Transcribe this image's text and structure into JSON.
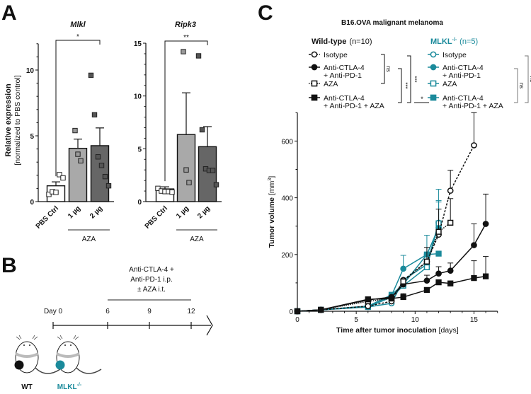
{
  "colors": {
    "wt": "#111111",
    "mlkl": "#1a8a9b",
    "bar_pbs": "#ffffff",
    "bar_1ug": "#a9a9a9",
    "bar_2ug": "#666666"
  },
  "panel_labels": {
    "a": "A",
    "b": "B",
    "c": "C"
  },
  "chart_data": [
    {
      "type": "bar",
      "title": "Mlkl",
      "ylabel": "Relative expression",
      "ylabel2": "[normalized to PBS control]",
      "categories": [
        "PBS Ctrl",
        "1 µg",
        "2 µg"
      ],
      "group_label": "AZA",
      "means": [
        1.2,
        4.05,
        4.25
      ],
      "sem": [
        0.3,
        0.7,
        1.35
      ],
      "points": [
        [
          0.55,
          0.75,
          0.7,
          2.05,
          1.8
        ],
        [
          5.4,
          3.6,
          3.1
        ],
        [
          9.6,
          6.6,
          3.4,
          2.75,
          1.9,
          1.2
        ]
      ],
      "yticks": [
        "0",
        "5",
        "10"
      ],
      "ylim": [
        0,
        12
      ],
      "significance": "*"
    },
    {
      "type": "bar",
      "title": "Ripk3",
      "categories": [
        "PBS Ctrl",
        "1 µg",
        "2 µg"
      ],
      "group_label": "AZA",
      "means": [
        1.2,
        6.35,
        5.2
      ],
      "sem": [
        0.2,
        3.95,
        1.9
      ],
      "points": [
        [
          1.25,
          1.0,
          0.95,
          0.95,
          0.9
        ],
        [
          14.2,
          3.0,
          1.8
        ],
        [
          13.8,
          6.8,
          3.1,
          2.95,
          2.95,
          1.6
        ]
      ],
      "yticks": [
        "0",
        "5",
        "10",
        "15"
      ],
      "ylim": [
        0,
        15
      ],
      "significance": "**"
    },
    {
      "type": "line",
      "title": "B16.OVA malignant melanoma",
      "xlabel": "Time after tumor inoculation",
      "xlabel_unit": "[days]",
      "ylabel": "Tumor volume",
      "ylabel_unit": "[mm",
      "ylabel_sup": "3",
      "ylabel_close": "]",
      "xlim": [
        0,
        17
      ],
      "ylim": [
        0,
        700
      ],
      "xticks": [
        "0",
        "5",
        "10",
        "15"
      ],
      "yticks": [
        "0",
        "200",
        "400",
        "600"
      ],
      "groups": [
        {
          "name": "Wild-type",
          "n": "(n=10)",
          "color_key": "wt"
        },
        {
          "name": "MLKL",
          "sup": "-/-",
          "n": "(n=5)",
          "color_key": "mlkl"
        }
      ],
      "series": [
        {
          "group": 0,
          "lines": [
            "Isotype"
          ],
          "marker": "open-circle",
          "dash": "dashed",
          "x": [
            0,
            2,
            6,
            8,
            9,
            11,
            12,
            13,
            15
          ],
          "y": [
            0,
            5,
            18,
            35,
            110,
            175,
            270,
            425,
            585
          ],
          "err": [
            0,
            0,
            0,
            0,
            0,
            0,
            90,
            497,
            700
          ]
        },
        {
          "group": 0,
          "lines": [
            "Anti-CTLA-4",
            "+ Anti-PD-1"
          ],
          "marker": "filled-circle",
          "dash": "solid",
          "x": [
            0,
            2,
            6,
            8,
            9,
            11,
            12,
            13,
            15,
            16
          ],
          "y": [
            0,
            5,
            40,
            50,
            95,
            108,
            133,
            143,
            233,
            308
          ],
          "err": [
            0,
            0,
            0,
            0,
            115,
            127,
            157,
            170,
            308,
            413
          ]
        },
        {
          "group": 0,
          "lines": [
            "AZA"
          ],
          "marker": "open-square",
          "dash": "dotted",
          "x": [
            0,
            2,
            6,
            8,
            9,
            11,
            12,
            13
          ],
          "y": [
            0,
            5,
            35,
            45,
            105,
            175,
            280,
            312
          ],
          "err": [
            0,
            0,
            0,
            0,
            0,
            225,
            360,
            397
          ]
        },
        {
          "group": 0,
          "lines": [
            "Anti-CTLA-4",
            "+ Anti-PD-1 + AZA"
          ],
          "marker": "filled-square",
          "dash": "solid",
          "x": [
            0,
            2,
            6,
            8,
            9,
            11,
            12,
            13,
            15,
            16
          ],
          "y": [
            0,
            5,
            42,
            45,
            50,
            75,
            102,
            98,
            117,
            123
          ],
          "err": [
            0,
            0,
            0,
            0,
            62,
            0,
            0,
            0,
            178,
            193
          ]
        },
        {
          "group": 1,
          "lines": [
            "Isotype"
          ],
          "marker": "open-circle",
          "dash": "solid",
          "x": [
            0,
            2,
            6,
            8,
            9,
            11,
            12
          ],
          "y": [
            0,
            5,
            15,
            28,
            110,
            165,
            312
          ],
          "err": [
            0,
            0,
            0,
            0,
            0,
            0,
            390
          ]
        },
        {
          "group": 1,
          "lines": [
            "Anti-CTLA-4",
            "+ Anti-PD-1"
          ],
          "marker": "filled-circle",
          "dash": "solid",
          "x": [
            0,
            2,
            6,
            8,
            9,
            11,
            12
          ],
          "y": [
            0,
            5,
            18,
            55,
            150,
            200,
            295
          ],
          "err": [
            0,
            0,
            0,
            0,
            197,
            268,
            430
          ]
        },
        {
          "group": 1,
          "lines": [
            "AZA"
          ],
          "marker": "open-square",
          "dash": "solid",
          "x": [
            0,
            2,
            6,
            8,
            9,
            11,
            12
          ],
          "y": [
            0,
            5,
            15,
            50,
            90,
            155,
            310
          ],
          "err": [
            0,
            0,
            0,
            0,
            0,
            0,
            385
          ]
        },
        {
          "group": 1,
          "lines": [
            "Anti-CTLA-4",
            "+ Anti-PD-1 + AZA"
          ],
          "marker": "filled-square",
          "dash": "solid",
          "x": [
            0,
            2,
            6,
            8,
            9,
            11,
            12
          ],
          "y": [
            0,
            5,
            18,
            58,
            95,
            200,
            203
          ],
          "err": [
            0,
            0,
            0,
            0,
            0,
            0,
            0
          ]
        }
      ],
      "significance": {
        "wt_iso_vs_aza": "ns",
        "wt_anti_vs_combo": "***",
        "wt_iso_vs_combo": "***",
        "wt_vs_mlkl_combo": "*",
        "mlkl_anti_vs_combo": "ns",
        "mlkl_iso_vs_combo": "ns"
      }
    }
  ],
  "timeline": {
    "treatment": [
      "Anti-CTLA-4 +",
      "Anti-PD-1 i.p.",
      "± AZA i.t."
    ],
    "days": [
      "Day 0",
      "6",
      "9",
      "12"
    ],
    "mice": [
      {
        "label": "WT",
        "color_key": "wt"
      },
      {
        "label": "MLKL",
        "sup": "-/-",
        "color_key": "mlkl"
      }
    ]
  }
}
